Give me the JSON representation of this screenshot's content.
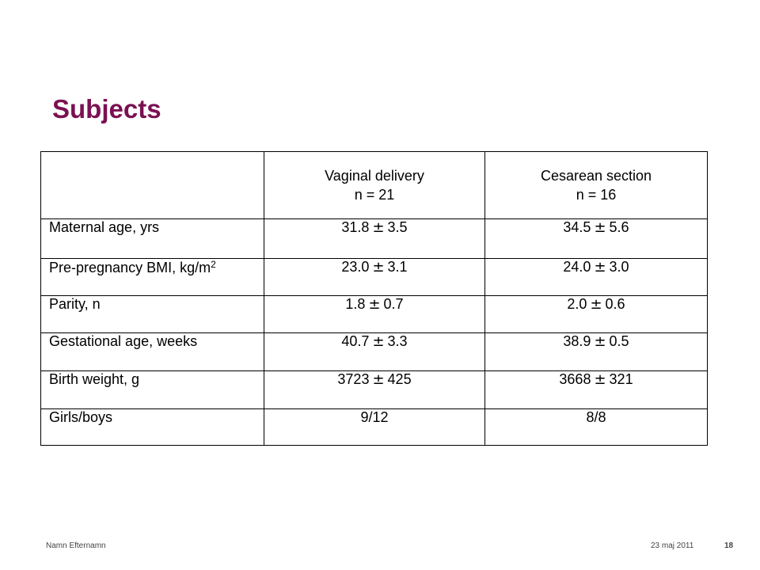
{
  "slide": {
    "title": "Subjects",
    "footer": {
      "author": "Namn Efternamn",
      "date": "23 maj 2011",
      "page": "18"
    }
  },
  "table": {
    "header": {
      "col1": "",
      "col2_line1": "Vaginal delivery",
      "col2_line2": "n = 21",
      "col3_line1": "Cesarean section",
      "col3_line2": "n = 16"
    },
    "rows": [
      {
        "label": "Maternal age, yrs",
        "vaginal_mean": "31.8",
        "vaginal_sd": "3.5",
        "cesarean_mean": "34.5",
        "cesarean_sd": "5.6"
      },
      {
        "label": "Pre-pregnancy BMI, kg/m",
        "label_sup": "2",
        "vaginal_mean": "23.0",
        "vaginal_sd": "3.1",
        "cesarean_mean": "24.0",
        "cesarean_sd": "3.0"
      },
      {
        "label": "Parity, n",
        "vaginal_mean": "1.8",
        "vaginal_sd": "0.7",
        "cesarean_mean": "2.0",
        "cesarean_sd": "0.6"
      },
      {
        "label": "Gestational age, weeks",
        "vaginal_mean": "40.7",
        "vaginal_sd": "3.3",
        "cesarean_mean": "38.9",
        "cesarean_sd": "0.5"
      },
      {
        "label": "Birth weight, g",
        "vaginal_mean": "3723",
        "vaginal_sd": "425",
        "cesarean_mean": "3668",
        "cesarean_sd": "321"
      },
      {
        "label": "Girls/boys",
        "vaginal": "9/12",
        "cesarean": "8/8"
      }
    ],
    "pm_symbol": "±"
  },
  "colors": {
    "title": "#7a1152",
    "border": "#000000"
  }
}
